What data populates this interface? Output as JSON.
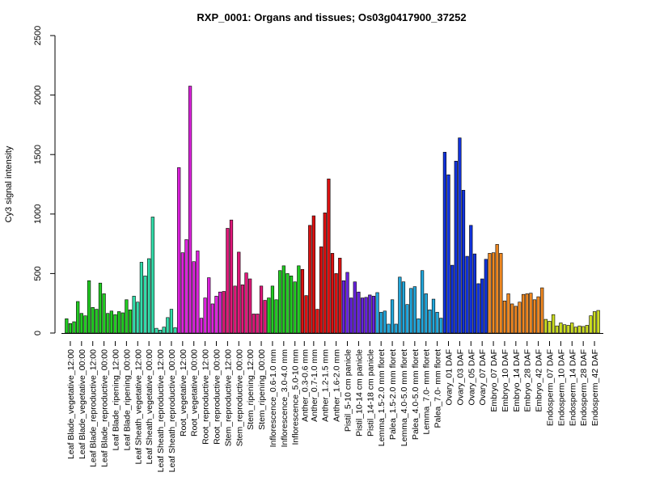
{
  "chart_data": {
    "type": "bar",
    "title": "RXP_0001: Organs and tissues; Os03g0417900_37252",
    "xlabel": "",
    "ylabel": "Cy3 signal intensity",
    "ylim": [
      0,
      2500
    ],
    "yticks": [
      0,
      500,
      1000,
      1500,
      2000,
      2500
    ],
    "grid": false,
    "legend": "none",
    "bar_edge_color": "#000000",
    "groups": [
      {
        "label": "Leaf Blade_vegetative_12:00",
        "color": "#22cc22",
        "values": [
          120,
          80,
          95
        ]
      },
      {
        "label": "Leaf Blade_vegetative_00:00",
        "color": "#22cc22",
        "values": [
          265,
          165,
          145
        ]
      },
      {
        "label": "Leaf Blade_reproductive_12:00",
        "color": "#22cc22",
        "values": [
          440,
          215,
          200
        ]
      },
      {
        "label": "Leaf Blade_reproductive_00:00",
        "color": "#22cc22",
        "values": [
          420,
          330,
          165
        ]
      },
      {
        "label": "Leaf Blade_ripening_12:00",
        "color": "#22cc22",
        "values": [
          185,
          155,
          180
        ]
      },
      {
        "label": "Leaf Blade_ripening_00:00",
        "color": "#22cc22",
        "values": [
          170,
          280,
          195
        ]
      },
      {
        "label": "Leaf Sheath_vegetative_12:00",
        "color": "#33ddaa",
        "values": [
          310,
          260,
          595
        ]
      },
      {
        "label": "Leaf Sheath_vegetative_00:00",
        "color": "#33ddaa",
        "values": [
          480,
          625,
          975
        ]
      },
      {
        "label": "Leaf Sheath_reproductive_12:00",
        "color": "#33ddaa",
        "values": [
          40,
          25,
          50
        ]
      },
      {
        "label": "Leaf Sheath_reproductive_00:00",
        "color": "#33ddaa",
        "values": [
          130,
          200,
          45
        ]
      },
      {
        "label": "Root_vegetative_12:00",
        "color": "#dd22dd",
        "values": [
          1390,
          675,
          785
        ]
      },
      {
        "label": "Root_vegetative_00:00",
        "color": "#dd22dd",
        "values": [
          2075,
          600,
          690
        ]
      },
      {
        "label": "Root_reproductive_12:00",
        "color": "#dd22dd",
        "values": [
          125,
          295,
          465
        ]
      },
      {
        "label": "Root_reproductive_00:00",
        "color": "#dd22dd",
        "values": [
          245,
          310,
          345
        ]
      },
      {
        "label": "Stem_reproductive_12:00",
        "color": "#e0187a",
        "values": [
          350,
          880,
          950
        ]
      },
      {
        "label": "Stem_reproductive_00:00",
        "color": "#e0187a",
        "values": [
          395,
          680,
          405
        ]
      },
      {
        "label": "Stem_ripening_12:00",
        "color": "#e0187a",
        "values": [
          505,
          455,
          160
        ]
      },
      {
        "label": "Stem_ripening_00:00",
        "color": "#e0187a",
        "values": [
          160,
          395,
          275
        ]
      },
      {
        "label": "Inflorescence_0.6-1.0 mm",
        "color": "#22cc22",
        "values": [
          295,
          395,
          280
        ]
      },
      {
        "label": "Inflorescence_3.0-4.0 mm",
        "color": "#22cc22",
        "values": [
          525,
          565,
          500
        ]
      },
      {
        "label": "Inflorescence_5.0-10 mm",
        "color": "#22cc22",
        "values": [
          480,
          430,
          565
        ]
      },
      {
        "label": "Anther_0.3-0.6 mm",
        "color": "#dd1111",
        "values": [
          535,
          315
        ]
      },
      {
        "label": "Anther_0.7-1.0 mm",
        "color": "#dd1111",
        "values": [
          905,
          985,
          200
        ]
      },
      {
        "label": "Anther_1.2-1.5 mm",
        "color": "#dd1111",
        "values": [
          725,
          1010,
          1295
        ]
      },
      {
        "label": "Anther_1.6-2.0 mm",
        "color": "#dd1111",
        "values": [
          670,
          500,
          630
        ]
      },
      {
        "label": "Pistil_5-10 cm panicle",
        "color": "#6622dd",
        "values": [
          440,
          510,
          295
        ]
      },
      {
        "label": "Pistil_10-14 cm panicle",
        "color": "#6622dd",
        "values": [
          430,
          345,
          295
        ]
      },
      {
        "label": "Pistil_14-18 cm panicle",
        "color": "#6622dd",
        "values": [
          300,
          320,
          310
        ]
      },
      {
        "label": "Lemma_1.5-2.0 mm floret",
        "color": "#22a8dd",
        "values": [
          340,
          175,
          185
        ]
      },
      {
        "label": "Palea_1.5-2.0 mm floret",
        "color": "#22a8dd",
        "values": [
          75,
          280,
          75
        ]
      },
      {
        "label": "Lemma_4.0-5.0 mm floret",
        "color": "#22a8dd",
        "values": [
          470,
          430,
          240
        ]
      },
      {
        "label": "Palea_4.0-5.0 mm floret",
        "color": "#22a8dd",
        "values": [
          375,
          390,
          120
        ]
      },
      {
        "label": "Lemma_7.0- mm floret",
        "color": "#22a8dd",
        "values": [
          525,
          330,
          195
        ]
      },
      {
        "label": "Palea_7.0- mm floret",
        "color": "#22a8dd",
        "values": [
          285,
          175,
          125
        ]
      },
      {
        "label": "Ovary_01 DAF",
        "color": "#1133dd",
        "values": [
          1520,
          1330,
          570
        ]
      },
      {
        "label": "Ovary_03 DAF",
        "color": "#1133dd",
        "values": [
          1445,
          1640,
          1200
        ]
      },
      {
        "label": "Ovary_05 DAF",
        "color": "#1133dd",
        "values": [
          645,
          905,
          665
        ]
      },
      {
        "label": "Ovary_07 DAF",
        "color": "#1133dd",
        "values": [
          415,
          455,
          620
        ]
      },
      {
        "label": "Embryo_07 DAF",
        "color": "#ee8822",
        "values": [
          670,
          675,
          745
        ]
      },
      {
        "label": "Embryo_10 DAF",
        "color": "#ee8822",
        "values": [
          670,
          270,
          330
        ]
      },
      {
        "label": "Embryo_14 DAF",
        "color": "#ee8822",
        "values": [
          245,
          225,
          260
        ]
      },
      {
        "label": "Embryo_28 DAF",
        "color": "#ee8822",
        "values": [
          325,
          330,
          335
        ]
      },
      {
        "label": "Embryo_42 DAF",
        "color": "#ee8822",
        "values": [
          280,
          305,
          380
        ]
      },
      {
        "label": "Endosperm_07 DAF",
        "color": "#ccdd22",
        "values": [
          115,
          100,
          155
        ]
      },
      {
        "label": "Endosperm_10 DAF",
        "color": "#ccdd22",
        "values": [
          60,
          85,
          70
        ]
      },
      {
        "label": "Endosperm_14 DAF",
        "color": "#ccdd22",
        "values": [
          65,
          85,
          50
        ]
      },
      {
        "label": "Endosperm_28 DAF",
        "color": "#ccdd22",
        "values": [
          60,
          55,
          65
        ]
      },
      {
        "label": "Endosperm_42 DAF",
        "color": "#ccdd22",
        "values": [
          145,
          180,
          190
        ]
      }
    ]
  }
}
